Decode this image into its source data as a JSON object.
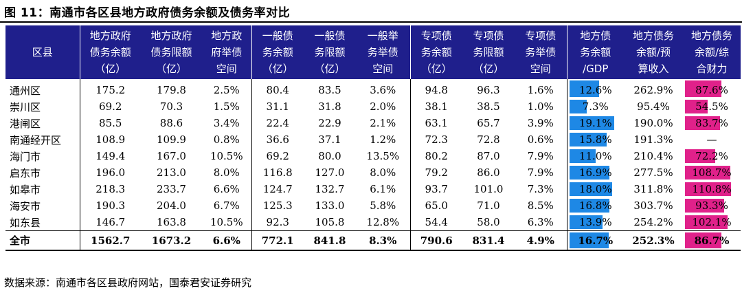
{
  "title": "图 11：南通市各区县地方政府债务余额及债务率对比",
  "source": "数据来源：南通市各区县政府网站，国泰君安证券研究",
  "colors": {
    "header_bg": "#1f1f8c",
    "gdp_bar": "#1e88e5",
    "fin_bar": "#e0218a"
  },
  "headers": [
    [
      "区县"
    ],
    [
      "地方政府",
      "债务余额",
      "（亿）"
    ],
    [
      "地方政府",
      "债务限额",
      "（亿）"
    ],
    [
      "地方政",
      "府举债",
      "空间"
    ],
    [
      "一般债",
      "务余额",
      "（亿）"
    ],
    [
      "一般债",
      "务限额",
      "（亿）"
    ],
    [
      "一般举",
      "务举债",
      "空间"
    ],
    [
      "专项债",
      "务余额",
      "（亿）"
    ],
    [
      "专项债",
      "务限额",
      "（亿）"
    ],
    [
      "专项债",
      "务举债",
      "空间"
    ],
    [
      "地方债",
      "务余额",
      "/GDP"
    ],
    [
      "地方债务",
      "余额/预",
      "算收入"
    ],
    [
      "地方债务",
      "余额/综",
      "合财力"
    ]
  ],
  "rows": [
    {
      "name": "通州区",
      "v": [
        "175.2",
        "179.8",
        "2.5%",
        "80.4",
        "83.5",
        "3.6%",
        "94.8",
        "96.3",
        "1.6%",
        "12.6%",
        "262.9%",
        "87.6%"
      ],
      "gdp": 12.6,
      "fin": 87.6
    },
    {
      "name": "崇川区",
      "v": [
        "69.2",
        "70.3",
        "1.5%",
        "31.1",
        "31.8",
        "2.0%",
        "38.1",
        "38.5",
        "1.0%",
        "7.3%",
        "95.4%",
        "54.5%"
      ],
      "gdp": 7.3,
      "fin": 54.5
    },
    {
      "name": "港闸区",
      "v": [
        "85.5",
        "88.6",
        "3.4%",
        "22.4",
        "22.9",
        "2.1%",
        "63.1",
        "65.7",
        "3.9%",
        "19.1%",
        "190.0%",
        "83.7%"
      ],
      "gdp": 19.1,
      "fin": 83.7
    },
    {
      "name": "南通经开区",
      "v": [
        "108.9",
        "109.9",
        "0.8%",
        "36.6",
        "37.1",
        "1.2%",
        "72.3",
        "72.8",
        "0.6%",
        "15.8%",
        "191.3%",
        "—"
      ],
      "gdp": 15.8,
      "fin": null
    },
    {
      "name": "海门市",
      "v": [
        "149.4",
        "167.0",
        "10.5%",
        "69.2",
        "80.0",
        "13.5%",
        "80.2",
        "87.0",
        "7.9%",
        "11.0%",
        "210.4%",
        "72.2%"
      ],
      "gdp": 11.0,
      "fin": 72.2
    },
    {
      "name": "启东市",
      "v": [
        "196.0",
        "213.0",
        "8.0%",
        "116.8",
        "127.0",
        "8.0%",
        "79.2",
        "86.0",
        "7.9%",
        "16.9%",
        "277.5%",
        "108.7%"
      ],
      "gdp": 16.9,
      "fin": 108.7
    },
    {
      "name": "如皋市",
      "v": [
        "218.3",
        "233.7",
        "6.6%",
        "124.7",
        "132.7",
        "6.1%",
        "93.7",
        "101.0",
        "7.3%",
        "18.0%",
        "311.8%",
        "110.8%"
      ],
      "gdp": 18.0,
      "fin": 110.8
    },
    {
      "name": "海安市",
      "v": [
        "190.3",
        "204.0",
        "6.7%",
        "125.3",
        "133.0",
        "5.8%",
        "65.0",
        "71.0",
        "8.5%",
        "16.8%",
        "303.7%",
        "93.3%"
      ],
      "gdp": 16.8,
      "fin": 93.3
    },
    {
      "name": "如东县",
      "v": [
        "146.7",
        "163.8",
        "10.5%",
        "92.3",
        "105.8",
        "12.8%",
        "54.4",
        "58.0",
        "6.3%",
        "13.9%",
        "254.2%",
        "102.1%"
      ],
      "gdp": 13.9,
      "fin": 102.1
    }
  ],
  "total": {
    "name": "全市",
    "v": [
      "1562.7",
      "1673.2",
      "6.6%",
      "772.1",
      "841.8",
      "8.3%",
      "790.6",
      "831.4",
      "4.9%",
      "16.7%",
      "252.3%",
      "86.7%"
    ],
    "gdp": 16.7,
    "fin": 86.7
  }
}
